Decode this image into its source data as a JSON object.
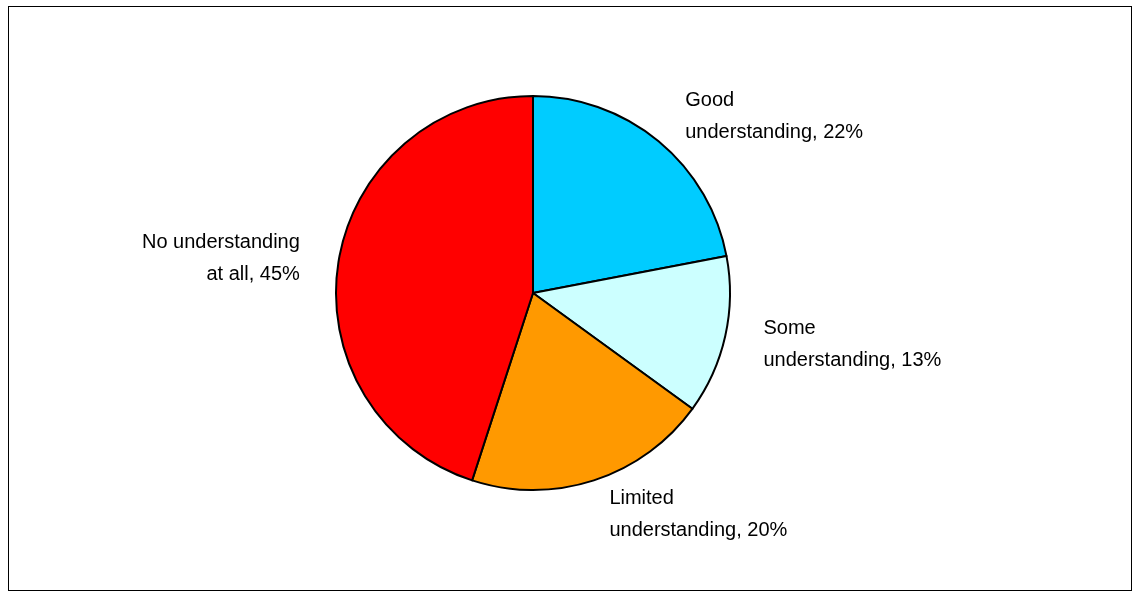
{
  "chart_data": {
    "type": "pie",
    "categories": [
      "Good understanding",
      "Some understanding",
      "Limited understanding",
      "No understanding at all"
    ],
    "values": [
      22,
      13,
      20,
      45
    ],
    "colors": [
      "#00ccff",
      "#ccffff",
      "#ff9900",
      "#ff0000"
    ],
    "value_labels": [
      "22%",
      "13%",
      "20%",
      "45%"
    ]
  }
}
